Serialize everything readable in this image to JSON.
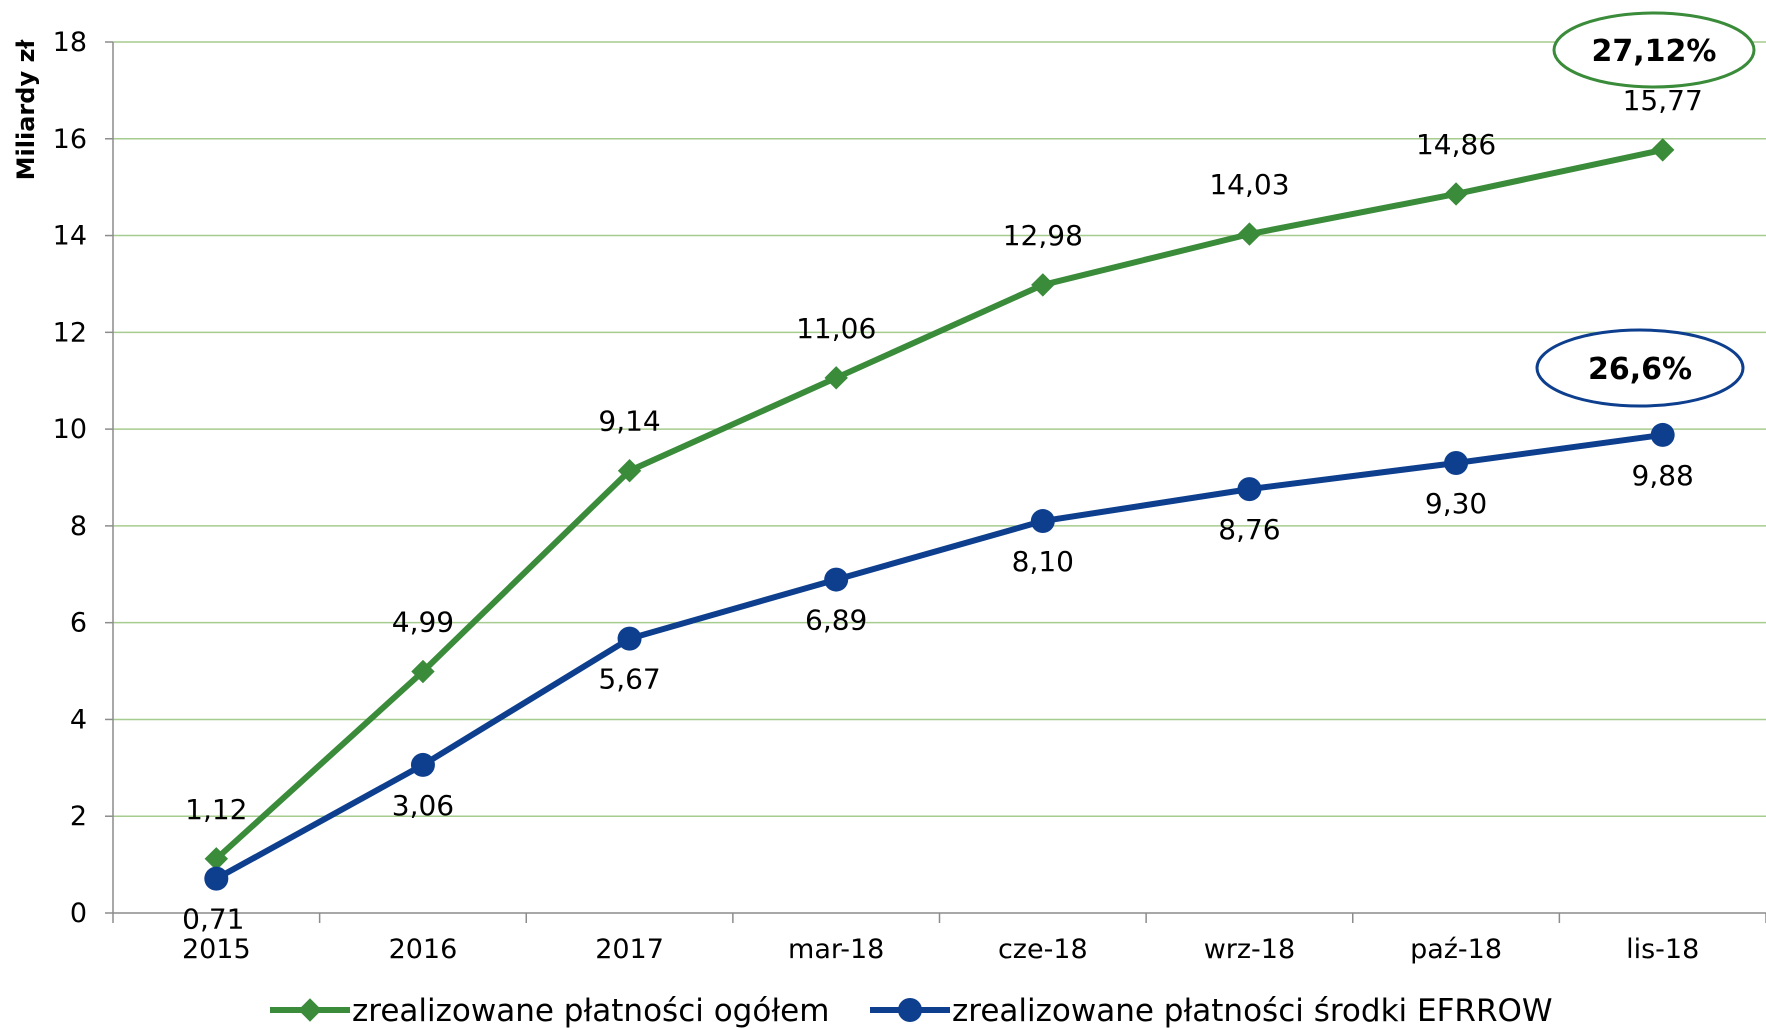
{
  "chart_data": {
    "type": "line",
    "title": "",
    "xlabel": "",
    "ylabel": "Miliardy zł",
    "ylim": [
      0,
      18
    ],
    "yticks": [
      0,
      2,
      4,
      6,
      8,
      10,
      12,
      14,
      16,
      18
    ],
    "grid": true,
    "legend_position": "bottom",
    "categories": [
      "2015",
      "2016",
      "2017",
      "mar-18",
      "cze-18",
      "wrz-18",
      "paź-18",
      "lis-18"
    ],
    "series": [
      {
        "name": "zrealizowane płatności ogółem",
        "color": "#3a8b3a",
        "marker": "diamond",
        "values": [
          1.12,
          4.99,
          9.14,
          11.06,
          12.98,
          14.03,
          14.86,
          15.77
        ],
        "labels": [
          "1,12",
          "4,99",
          "9,14",
          "11,06",
          "12,98",
          "14,03",
          "14,86",
          "15,77"
        ]
      },
      {
        "name": "zrealizowane płatności środki EFRROW",
        "color": "#0e3f8e",
        "marker": "circle",
        "values": [
          0.71,
          3.06,
          5.67,
          6.89,
          8.1,
          8.76,
          9.3,
          9.88
        ],
        "labels": [
          "0,71",
          "3,06",
          "5,67",
          "6,89",
          "8,10",
          "8,76",
          "9,30",
          "9,88"
        ]
      }
    ],
    "annotations": [
      {
        "text": "27,12%",
        "series": 0,
        "color": "#3a8b3a"
      },
      {
        "text": "26,6%",
        "series": 1,
        "color": "#0e3f8e"
      }
    ],
    "grid_color": "#a6cc8f"
  }
}
